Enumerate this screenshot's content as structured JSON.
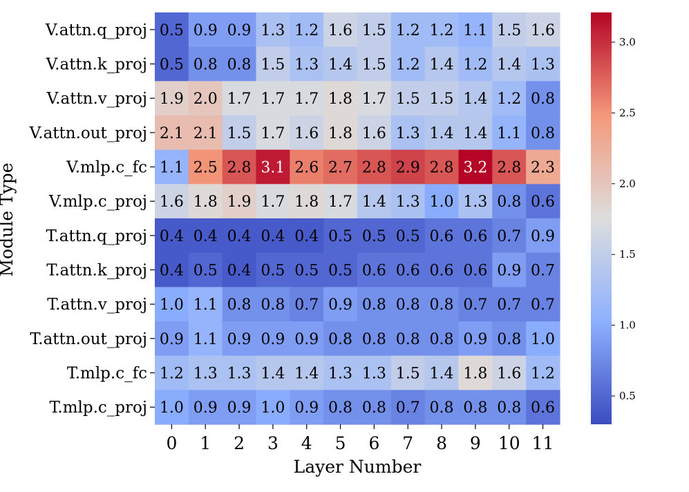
{
  "chart_data": {
    "type": "heatmap",
    "xlabel": "Layer Number",
    "ylabel": "Module Type",
    "x_categories": [
      "0",
      "1",
      "2",
      "3",
      "4",
      "5",
      "6",
      "7",
      "8",
      "9",
      "10",
      "11"
    ],
    "y_categories": [
      "V.attn.q_proj",
      "V.attn.k_proj",
      "V.attn.v_proj",
      "V.attn.out_proj",
      "V.mlp.c_fc",
      "V.mlp.c_proj",
      "T.attn.q_proj",
      "T.attn.k_proj",
      "T.attn.v_proj",
      "T.attn.out_proj",
      "T.mlp.c_fc",
      "T.mlp.c_proj"
    ],
    "values": [
      [
        0.5,
        0.9,
        0.9,
        1.3,
        1.2,
        1.6,
        1.5,
        1.2,
        1.2,
        1.1,
        1.5,
        1.6
      ],
      [
        0.5,
        0.8,
        0.8,
        1.5,
        1.3,
        1.4,
        1.5,
        1.2,
        1.4,
        1.2,
        1.4,
        1.3
      ],
      [
        1.9,
        2.0,
        1.7,
        1.7,
        1.7,
        1.8,
        1.7,
        1.5,
        1.5,
        1.4,
        1.2,
        0.8
      ],
      [
        2.1,
        2.1,
        1.5,
        1.7,
        1.6,
        1.8,
        1.6,
        1.3,
        1.4,
        1.4,
        1.1,
        0.8
      ],
      [
        1.1,
        2.5,
        2.8,
        3.1,
        2.6,
        2.7,
        2.8,
        2.9,
        2.8,
        3.2,
        2.8,
        2.3
      ],
      [
        1.6,
        1.8,
        1.9,
        1.7,
        1.8,
        1.7,
        1.4,
        1.3,
        1.0,
        1.3,
        0.8,
        0.6
      ],
      [
        0.4,
        0.4,
        0.4,
        0.4,
        0.4,
        0.5,
        0.5,
        0.5,
        0.6,
        0.6,
        0.7,
        0.9
      ],
      [
        0.4,
        0.5,
        0.4,
        0.5,
        0.5,
        0.5,
        0.6,
        0.6,
        0.6,
        0.6,
        0.9,
        0.7
      ],
      [
        1.0,
        1.1,
        0.8,
        0.8,
        0.7,
        0.9,
        0.8,
        0.8,
        0.8,
        0.7,
        0.7,
        0.7
      ],
      [
        0.9,
        1.1,
        0.9,
        0.9,
        0.9,
        0.8,
        0.8,
        0.8,
        0.8,
        0.9,
        0.8,
        1.0
      ],
      [
        1.2,
        1.3,
        1.3,
        1.4,
        1.4,
        1.3,
        1.3,
        1.5,
        1.4,
        1.8,
        1.6,
        1.2
      ],
      [
        1.0,
        0.9,
        0.9,
        1.0,
        0.9,
        0.8,
        0.8,
        0.7,
        0.8,
        0.8,
        0.8,
        0.6
      ]
    ],
    "colormap": "coolwarm",
    "vmin": 0.3,
    "vmax": 3.21,
    "colorbar_ticks": [
      "0.5",
      "1.0",
      "1.5",
      "2.0",
      "2.5",
      "3.0"
    ],
    "colorbar_tick_values": [
      0.5,
      1.0,
      1.5,
      2.0,
      2.5,
      3.0
    ],
    "colorbar_placement": "right",
    "grid": false
  }
}
